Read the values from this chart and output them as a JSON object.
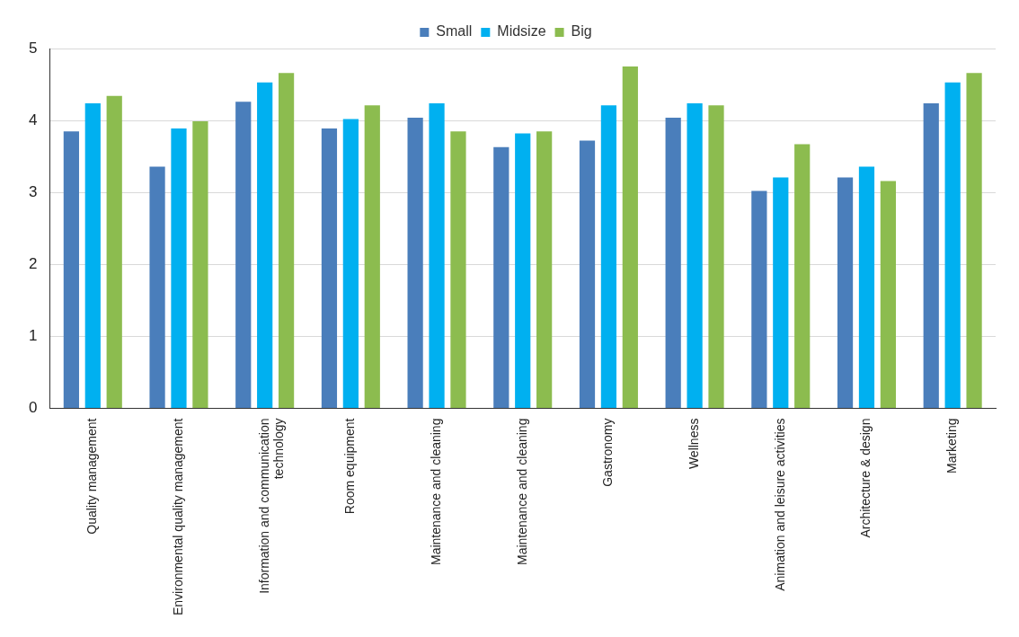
{
  "chart_data": {
    "type": "bar",
    "categories": [
      "Quality management",
      "Environmental quality management",
      "Information and communication technology",
      "Room equipment",
      "Maintenance and cleaning",
      "Maintenance and cleaning",
      "Gastronomy",
      "Wellness",
      "Animation and leisure activities",
      "Architecture & design",
      "Marketing"
    ],
    "series": [
      {
        "name": "Small",
        "color": "#4a7ebb",
        "values": [
          3.85,
          3.36,
          4.26,
          3.89,
          4.04,
          3.63,
          3.72,
          4.04,
          3.02,
          3.21,
          4.24
        ]
      },
      {
        "name": "Midsize",
        "color": "#00b0f0",
        "values": [
          4.24,
          3.89,
          4.53,
          4.02,
          4.24,
          3.82,
          4.21,
          4.24,
          3.21,
          3.36,
          4.53
        ]
      },
      {
        "name": "Big",
        "color": "#8cbc4f",
        "values": [
          4.34,
          3.99,
          4.66,
          4.21,
          3.85,
          3.85,
          4.75,
          4.21,
          3.67,
          3.16,
          4.66
        ]
      }
    ],
    "ylim": [
      0,
      5
    ],
    "yticks": [
      0,
      1,
      2,
      3,
      4,
      5
    ],
    "grid": "y",
    "legend": "top"
  }
}
